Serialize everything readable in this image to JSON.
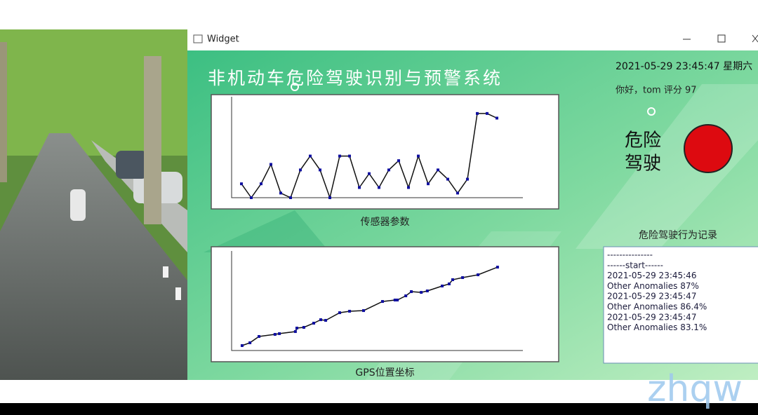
{
  "window": {
    "title": "Widget"
  },
  "app_title": "非机动车危险驾驶识别与预警系统",
  "datetime": "2021-05-29 23:45:47 星期六",
  "greeting": "你好，tom   评分 97",
  "status": [
    "危险",
    "驾驶"
  ],
  "log": {
    "title": "危险驾驶行为记录",
    "lines": [
      "---------------",
      "------start------",
      "2021-05-29 23:45:46",
      "Other Anomalies  87%",
      "2021-05-29 23:45:47",
      "Other Anomalies  86.4%",
      "2021-05-29 23:45:47",
      "Other Anomalies  83.1%"
    ]
  },
  "chart_data": [
    {
      "type": "line",
      "caption": "传感器参数",
      "color": "#1010a0",
      "ylim": [
        0,
        100
      ],
      "values": [
        15,
        0,
        15,
        36,
        5,
        0,
        30,
        45,
        30,
        0,
        45,
        45,
        11,
        26,
        11,
        30,
        40,
        11,
        45,
        15,
        30,
        20,
        5,
        20,
        91,
        91,
        86
      ]
    },
    {
      "type": "scatterline",
      "caption": "GPS位置坐标",
      "color": "#1010a0",
      "xlim": [
        0,
        100
      ],
      "ylim": [
        0,
        100
      ],
      "x": [
        3.6,
        6.3,
        9.4,
        14.9,
        16.4,
        21.9,
        22.4,
        24.8,
        28.2,
        30.6,
        32.3,
        37.1,
        40.5,
        45.3,
        51.8,
        56.1,
        56.9,
        59.8,
        61.7,
        65.1,
        67.2,
        72.3,
        74.7,
        75.9,
        79.3,
        84.6,
        91.3
      ],
      "values": [
        5.4,
        8.5,
        15.4,
        17.7,
        18.5,
        20.8,
        24.6,
        25.4,
        30,
        33.8,
        33.1,
        41.5,
        43.1,
        43.8,
        53.8,
        55.4,
        55.4,
        60,
        64.6,
        63.8,
        65.4,
        70.8,
        73.1,
        77.7,
        80,
        83.1,
        91.5
      ]
    }
  ],
  "watermark": "zhqw"
}
